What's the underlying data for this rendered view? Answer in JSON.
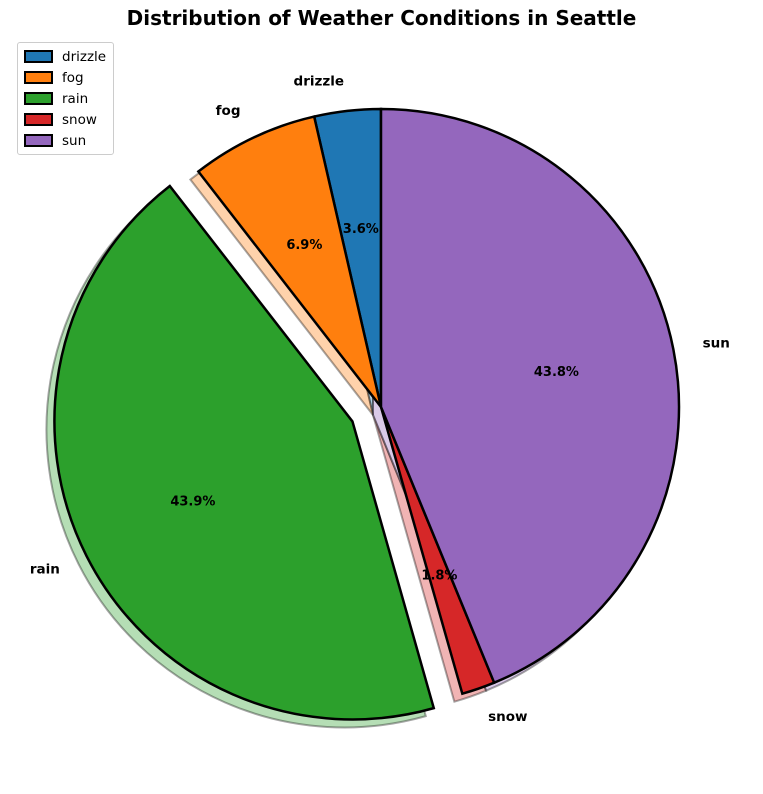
{
  "chart_data": {
    "type": "pie",
    "title": "Distribution of Weather Conditions in Seattle",
    "categories": [
      "drizzle",
      "fog",
      "rain",
      "snow",
      "sun"
    ],
    "values": [
      3.6,
      6.9,
      43.9,
      1.8,
      43.8
    ],
    "labels": [
      "3.6%",
      "6.9%",
      "43.9%",
      "1.8%",
      "43.8%"
    ],
    "colors": [
      "#1f77b4",
      "#ff7f0e",
      "#2ca02c",
      "#d62728",
      "#9467bd"
    ],
    "exploded": [
      "rain"
    ],
    "shadow": true,
    "start_angle": 90,
    "direction": "counterclockwise",
    "legend": {
      "placement": "top-left",
      "entries": [
        "drizzle",
        "fog",
        "rain",
        "snow",
        "sun"
      ]
    }
  }
}
